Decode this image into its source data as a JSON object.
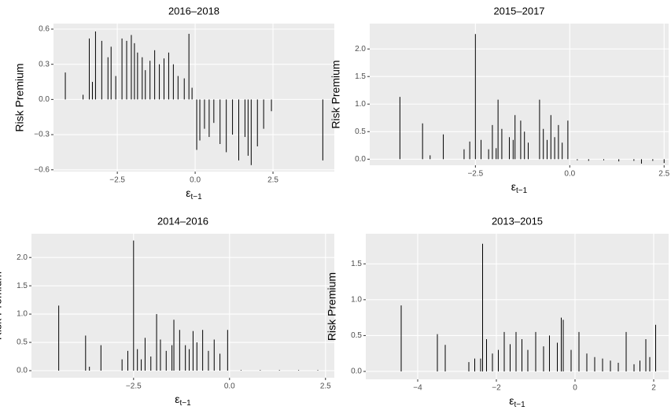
{
  "chart_data": [
    {
      "type": "spike",
      "title": "2016–2018",
      "ylabel": "Risk Premium",
      "xlabel": "ε",
      "xlabel_sub": "t−1",
      "color": "#000000",
      "grid": true,
      "xlim": [
        -4.55,
        4.47
      ],
      "ylim": [
        -0.615,
        0.647
      ],
      "xticks": [
        {
          "value": -2.5,
          "label": "−2.5"
        },
        {
          "value": 0,
          "label": "0.0"
        },
        2.5
      ],
      "yticks": [
        {
          "value": -0.6,
          "label": "−0.6"
        },
        {
          "value": -0.3,
          "label": "−0.3"
        },
        {
          "value": 0,
          "label": "0.0"
        },
        0.3,
        0.6
      ],
      "x": [
        -4.17,
        -3.6,
        -3.4,
        -3.3,
        -3.2,
        -3.0,
        -2.8,
        -2.7,
        -2.55,
        -2.35,
        -2.2,
        -2.05,
        -1.95,
        -1.85,
        -1.7,
        -1.6,
        -1.45,
        -1.3,
        -1.15,
        -1.0,
        -0.85,
        -0.7,
        -0.55,
        -0.35,
        -0.2,
        -0.1,
        0.05,
        0.15,
        0.3,
        0.45,
        0.6,
        0.8,
        1.0,
        1.2,
        1.4,
        1.6,
        1.7,
        1.8,
        2.0,
        2.2,
        2.45,
        4.1
      ],
      "values": [
        0.23,
        0.04,
        0.52,
        0.15,
        0.58,
        0.5,
        0.36,
        0.45,
        0.2,
        0.52,
        0.5,
        0.55,
        0.48,
        0.4,
        0.36,
        0.25,
        0.33,
        0.42,
        0.3,
        0.35,
        0.4,
        0.3,
        0.2,
        0.18,
        0.56,
        0.1,
        -0.43,
        -0.35,
        -0.25,
        -0.32,
        -0.2,
        -0.38,
        -0.45,
        -0.3,
        -0.52,
        -0.32,
        -0.48,
        -0.56,
        -0.4,
        -0.25,
        -0.1,
        -0.52
      ]
    },
    {
      "type": "spike",
      "title": "2015–2017",
      "ylabel": "Risk Premium",
      "xlabel": "ε",
      "xlabel_sub": "t−1",
      "color": "#000000",
      "grid": true,
      "xlim": [
        -5.3,
        2.62
      ],
      "ylim": [
        -0.11,
        2.46
      ],
      "xticks": [
        {
          "value": -2.5,
          "label": "−2.5"
        },
        {
          "value": 0,
          "label": "0.0"
        },
        2.5
      ],
      "yticks": [
        {
          "value": 0,
          "label": "0.0"
        },
        0.5,
        {
          "value": 1,
          "label": "1.0"
        },
        1.5,
        {
          "value": 2,
          "label": "2.0"
        }
      ],
      "x": [
        -4.5,
        -3.9,
        -3.7,
        -3.35,
        -2.8,
        -2.65,
        -2.5,
        -2.35,
        -2.15,
        -2.05,
        -1.95,
        -1.9,
        -1.8,
        -1.6,
        -1.5,
        -1.45,
        -1.3,
        -1.2,
        -1.1,
        -0.8,
        -0.7,
        -0.6,
        -0.5,
        -0.4,
        -0.3,
        -0.2,
        -0.05,
        0.2,
        0.5,
        0.9,
        1.3,
        1.7,
        1.9,
        2.2,
        2.5
      ],
      "values": [
        1.13,
        0.65,
        0.07,
        0.45,
        0.18,
        0.32,
        2.27,
        0.35,
        0.18,
        0.62,
        0.2,
        1.08,
        0.55,
        0.4,
        0.35,
        0.8,
        0.7,
        0.5,
        0.3,
        1.08,
        0.55,
        0.35,
        0.8,
        0.4,
        0.62,
        0.3,
        0.7,
        -0.02,
        -0.03,
        -0.02,
        -0.04,
        -0.03,
        -0.08,
        -0.03,
        -0.07
      ]
    },
    {
      "type": "spike",
      "title": "2014–2016",
      "ylabel": "Risk Premium",
      "xlabel": "ε",
      "xlabel_sub": "t−1",
      "color": "#000000",
      "grid": true,
      "xlim": [
        -5.16,
        2.73
      ],
      "ylim": [
        -0.125,
        2.42
      ],
      "xticks": [
        {
          "value": -2.5,
          "label": "−2.5"
        },
        {
          "value": 0,
          "label": "0.0"
        },
        2.5
      ],
      "yticks": [
        {
          "value": 0,
          "label": "0.0"
        },
        0.5,
        {
          "value": 1,
          "label": "1.0"
        },
        1.5,
        {
          "value": 2,
          "label": "2.0"
        }
      ],
      "x": [
        -4.45,
        -3.75,
        -3.65,
        -3.35,
        -2.8,
        -2.65,
        -2.5,
        -2.4,
        -2.3,
        -2.2,
        -2.05,
        -1.9,
        -1.8,
        -1.65,
        -1.5,
        -1.45,
        -1.3,
        -1.15,
        -1.05,
        -0.95,
        -0.85,
        -0.7,
        -0.55,
        -0.4,
        -0.25,
        -0.05,
        0.3,
        0.8,
        1.3,
        1.8,
        2.3
      ],
      "values": [
        1.15,
        0.62,
        0.07,
        0.45,
        0.2,
        0.35,
        2.3,
        0.38,
        0.2,
        0.58,
        0.25,
        1.0,
        0.55,
        0.35,
        0.45,
        0.9,
        0.72,
        0.45,
        0.38,
        0.7,
        0.5,
        0.72,
        0.35,
        0.55,
        0.3,
        0.72,
        0.01,
        0.01,
        0.01,
        0.01,
        0.01
      ]
    },
    {
      "type": "spike",
      "title": "2013–2015",
      "ylabel": "Risk Premium",
      "xlabel": "ε",
      "xlabel_sub": "t−1",
      "color": "#000000",
      "grid": true,
      "xlim": [
        -5.32,
        2.38
      ],
      "ylim": [
        -0.11,
        1.92
      ],
      "xticks": [
        {
          "value": -4,
          "label": "−4"
        },
        {
          "value": -2,
          "label": "−2"
        },
        0,
        2
      ],
      "yticks": [
        {
          "value": 0,
          "label": "0.0"
        },
        0.5,
        {
          "value": 1,
          "label": "1.0"
        },
        1.5
      ],
      "x": [
        -4.42,
        -3.5,
        -3.3,
        -2.7,
        -2.55,
        -2.4,
        -2.35,
        -2.25,
        -2.1,
        -1.95,
        -1.8,
        -1.65,
        -1.5,
        -1.35,
        -1.2,
        -1.0,
        -0.8,
        -0.65,
        -0.45,
        -0.35,
        -0.3,
        -0.1,
        0.1,
        0.3,
        0.5,
        0.7,
        0.9,
        1.1,
        1.3,
        1.5,
        1.65,
        1.8,
        1.9,
        2.05
      ],
      "values": [
        0.92,
        0.52,
        0.37,
        0.13,
        0.18,
        0.18,
        1.78,
        0.45,
        0.25,
        0.3,
        0.55,
        0.38,
        0.55,
        0.45,
        0.3,
        0.55,
        0.35,
        0.5,
        0.4,
        0.75,
        0.72,
        0.3,
        0.55,
        0.25,
        0.2,
        0.18,
        0.15,
        0.12,
        0.55,
        0.1,
        0.15,
        0.45,
        0.2,
        0.65
      ]
    }
  ]
}
